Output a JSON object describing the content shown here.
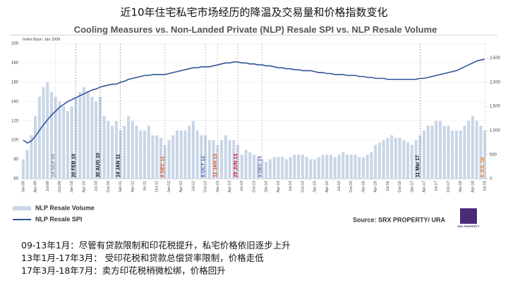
{
  "header": "近10年住宅私宅市场经历的降温及交易量和价格指数变化",
  "notes": [
    "09-13年1月：尽管有贷款限制和印花税提升，私宅价格依旧逐步上升",
    "13年1月-17年3月： 受印花税和贷款总偿贷率限制，价格走低",
    "17年3月-18年7月：卖方印花税稍微松绑，价格回升"
  ],
  "chart_data": {
    "type": "combo",
    "title": "Cooling Measures vs. Non-Landed Private (NLP) Resale SPI vs. NLP Resale Volume",
    "subtitle": "Index Base: Jan 2009",
    "source": "Source: SRX PROPERTY/ URA",
    "logo": "SRX PROPERTY",
    "categories": [
      "Jan-09",
      null,
      null,
      "Apr-09",
      null,
      null,
      "Jul-09",
      null,
      null,
      "Oct-09",
      null,
      null,
      "Jan-10",
      null,
      null,
      "Apr-10",
      null,
      null,
      "Jul-10",
      null,
      null,
      "Oct-10",
      null,
      null,
      "Jan-11",
      null,
      null,
      "Apr-11",
      null,
      null,
      "Jul-11",
      null,
      null,
      "Oct-11",
      null,
      null,
      "Jan-12",
      null,
      null,
      "Apr-12",
      null,
      null,
      "Jul-12",
      null,
      null,
      "Oct-12",
      null,
      null,
      "Jan-13",
      null,
      null,
      "Apr-13",
      null,
      null,
      "Jul-13",
      null,
      null,
      "Oct-13",
      null,
      null,
      "Jan-14",
      null,
      null,
      "Apr-14",
      null,
      null,
      "Jul-14",
      null,
      null,
      "Oct-14",
      null,
      null,
      "Jan-15",
      null,
      null,
      "Apr-15",
      null,
      null,
      "Jul-15",
      null,
      null,
      "Oct-15",
      null,
      null,
      "Jan-16",
      null,
      null,
      "Apr-16",
      null,
      null,
      "Jul-16",
      null,
      null,
      "Oct-16",
      null,
      null,
      "Jan-17",
      null,
      null,
      "Apr-17",
      null,
      null,
      "Jul-17",
      null,
      null,
      "Oct-17",
      null,
      null,
      "Jan-18",
      null,
      null,
      "Apr-18",
      null,
      null,
      "Jul-18"
    ],
    "series": [
      {
        "name": "NLP Resale Volume",
        "kind": "bar",
        "axis": "y2",
        "color": "#c9d6e8",
        "values": [
          400,
          600,
          900,
          1300,
          1700,
          1900,
          2000,
          1800,
          1700,
          1600,
          1500,
          1400,
          1500,
          1700,
          1800,
          1900,
          1800,
          1700,
          1600,
          1700,
          1300,
          1200,
          1100,
          1200,
          1000,
          1100,
          1300,
          1200,
          1100,
          1000,
          1000,
          1100,
          900,
          900,
          850,
          700,
          800,
          900,
          1000,
          1000,
          1000,
          1100,
          1200,
          1000,
          900,
          900,
          800,
          800,
          700,
          800,
          900,
          800,
          800,
          700,
          500,
          600,
          550,
          500,
          450,
          400,
          350,
          400,
          450,
          450,
          450,
          400,
          450,
          500,
          500,
          500,
          450,
          400,
          400,
          450,
          500,
          500,
          500,
          450,
          500,
          550,
          500,
          500,
          500,
          450,
          450,
          500,
          550,
          700,
          750,
          800,
          850,
          900,
          850,
          850,
          800,
          750,
          700,
          800,
          900,
          1000,
          1100,
          1100,
          1200,
          1200,
          1100,
          1100,
          1000,
          1000,
          1000,
          1100,
          1200,
          1300,
          1200,
          1100,
          1000
        ]
      },
      {
        "name": "NLP Resale SPI",
        "kind": "line",
        "color": "#2f5597",
        "values": [
          100,
          97,
          99,
          104,
          110,
          116,
          121,
          126,
          130,
          134,
          137,
          140,
          142,
          144,
          146,
          148,
          150,
          152,
          153,
          155,
          156,
          157,
          158,
          158,
          160,
          161,
          163,
          164,
          165,
          166,
          167,
          167,
          168,
          168,
          168,
          168,
          169,
          170,
          171,
          172,
          173,
          174,
          175,
          175,
          176,
          176,
          176,
          177,
          178,
          179,
          180,
          180,
          181,
          181,
          180,
          180,
          179,
          179,
          178,
          178,
          177,
          177,
          176,
          175,
          175,
          174,
          174,
          173,
          173,
          172,
          172,
          172,
          171,
          170,
          170,
          169,
          169,
          168,
          168,
          168,
          167,
          167,
          167,
          166,
          166,
          165,
          165,
          164,
          164,
          164,
          163,
          163,
          163,
          163,
          163,
          163,
          163,
          163,
          164,
          164,
          165,
          166,
          167,
          168,
          169,
          170,
          171,
          172,
          174,
          176,
          178,
          180,
          182,
          183,
          184
        ]
      }
    ],
    "ylim": [
      60,
      200
    ],
    "yticks": [
      60,
      80,
      100,
      120,
      140,
      160,
      180,
      200
    ],
    "y2lim": [
      0,
      2800
    ],
    "y2ticks": [
      0,
      500,
      {
        "value": 1000,
        "label": "1,000"
      },
      {
        "value": 1500,
        "label": "1,500"
      },
      {
        "value": 2000,
        "label": "2,000"
      },
      {
        "value": 2500,
        "label": "2,500"
      }
    ],
    "grid": true,
    "events": [
      {
        "date": "14 SEP 09",
        "color": "#9a9a9a"
      },
      {
        "date": "20 FEB 10",
        "color": "#111111"
      },
      {
        "date": "30 AUG 10",
        "color": "#111111"
      },
      {
        "date": "14 JAN 11",
        "color": "#111111"
      },
      {
        "date": "8 DEC 11",
        "color": "#e0541b"
      },
      {
        "date": "6 OCT 12",
        "color": "#4a6fb5"
      },
      {
        "date": "12 JAN 13",
        "color": "#e0541b"
      },
      {
        "date": "29 JUN 13",
        "color": "#d0102a"
      },
      {
        "date": "9 DEC 13",
        "color": "#7e6bb0"
      },
      {
        "date": "11 Mar 17",
        "color": "#111111"
      },
      {
        "date": "6 JUL 18",
        "color": "#f07c1a"
      }
    ]
  }
}
